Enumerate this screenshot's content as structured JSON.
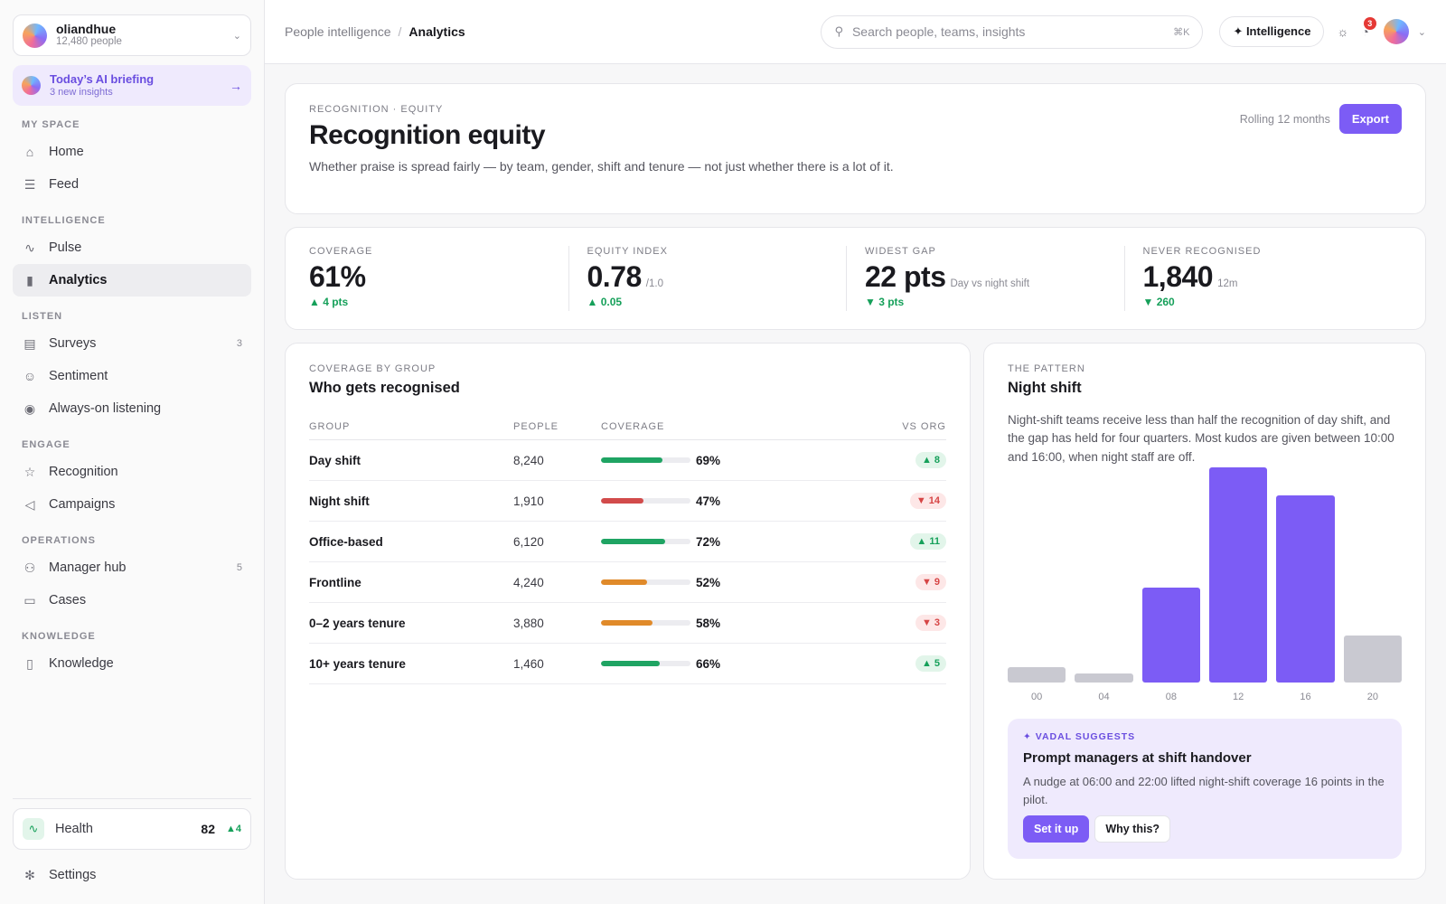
{
  "org": {
    "name": "oliandhue",
    "people": "12,480 people"
  },
  "briefing": {
    "title": "Today’s AI briefing",
    "sub": "3 new insights"
  },
  "sidebar": {
    "sections": [
      {
        "label": "MY SPACE",
        "items": [
          {
            "label": "Home",
            "icon": "home-icon",
            "glyph": "⌂"
          },
          {
            "label": "Feed",
            "icon": "feed-icon",
            "glyph": "☰"
          }
        ]
      },
      {
        "label": "INTELLIGENCE",
        "items": [
          {
            "label": "Pulse",
            "icon": "pulse-icon",
            "glyph": "∿"
          },
          {
            "label": "Analytics",
            "icon": "analytics-icon",
            "glyph": "▮",
            "active": true
          }
        ]
      },
      {
        "label": "LISTEN",
        "items": [
          {
            "label": "Surveys",
            "icon": "surveys-icon",
            "glyph": "▤",
            "count": "3"
          },
          {
            "label": "Sentiment",
            "icon": "sentiment-icon",
            "glyph": "☺"
          },
          {
            "label": "Always-on listening",
            "icon": "listening-icon",
            "glyph": "◉"
          }
        ]
      },
      {
        "label": "ENGAGE",
        "items": [
          {
            "label": "Recognition",
            "icon": "star-icon",
            "glyph": "☆"
          },
          {
            "label": "Campaigns",
            "icon": "megaphone-icon",
            "glyph": "◁"
          }
        ]
      },
      {
        "label": "OPERATIONS",
        "items": [
          {
            "label": "Manager hub",
            "icon": "users-icon",
            "glyph": "⚇",
            "count": "5"
          },
          {
            "label": "Cases",
            "icon": "briefcase-icon",
            "glyph": "▭"
          }
        ]
      },
      {
        "label": "KNOWLEDGE",
        "items": [
          {
            "label": "Knowledge",
            "icon": "book-icon",
            "glyph": "▯"
          }
        ]
      }
    ],
    "health": {
      "label": "Health",
      "value": "82",
      "delta": "▲4"
    },
    "settings": "Settings"
  },
  "topbar": {
    "crumb_parent": "People intelligence",
    "crumb_sep": "/",
    "crumb_current": "Analytics",
    "search_placeholder": "Search people, teams, insights",
    "search_kbd": "⌘K",
    "intel_label": "✦ Intelligence",
    "notif_count": "3"
  },
  "header": {
    "eyebrow": "RECOGNITION · EQUITY",
    "title": "Recognition equity",
    "desc": "Whether praise is spread fairly — by team, gender, shift and tenure — not just whether there is a lot of it.",
    "rolling": "Rolling 12 months",
    "export": "Export"
  },
  "kpis": [
    {
      "label": "COVERAGE",
      "value": "61%",
      "suffix": "",
      "delta": "▲ 4 pts"
    },
    {
      "label": "EQUITY INDEX",
      "value": "0.78",
      "suffix": "/1.0",
      "delta": "▲ 0.05"
    },
    {
      "label": "WIDEST GAP",
      "value": "22 pts",
      "suffix": "Day vs night shift",
      "delta": "▼ 3 pts"
    },
    {
      "label": "NEVER RECOGNISED",
      "value": "1,840",
      "suffix": "12m",
      "delta": "▼ 260"
    }
  ],
  "coverage": {
    "eyebrow": "COVERAGE BY GROUP",
    "title": "Who gets recognised",
    "headers": {
      "group": "GROUP",
      "people": "PEOPLE",
      "coverage": "COVERAGE",
      "vs": "VS ORG"
    },
    "rows": [
      {
        "group": "Day shift",
        "people": "8,240",
        "coverage": "69%",
        "pct": 69,
        "color": "#1fa463",
        "vs": "▲ 8",
        "dir": "up"
      },
      {
        "group": "Night shift",
        "people": "1,910",
        "coverage": "47%",
        "pct": 47,
        "color": "#d24b4b",
        "vs": "▼ 14",
        "dir": "down"
      },
      {
        "group": "Office-based",
        "people": "6,120",
        "coverage": "72%",
        "pct": 72,
        "color": "#1fa463",
        "vs": "▲ 11",
        "dir": "up"
      },
      {
        "group": "Frontline",
        "people": "4,240",
        "coverage": "52%",
        "pct": 52,
        "color": "#e08a2a",
        "vs": "▼ 9",
        "dir": "down"
      },
      {
        "group": "0–2 years tenure",
        "people": "3,880",
        "coverage": "58%",
        "pct": 58,
        "color": "#e08a2a",
        "vs": "▼ 3",
        "dir": "down"
      },
      {
        "group": "10+ years tenure",
        "people": "1,460",
        "coverage": "66%",
        "pct": 66,
        "color": "#1fa463",
        "vs": "▲ 5",
        "dir": "up"
      }
    ]
  },
  "pattern": {
    "eyebrow": "THE PATTERN",
    "title": "Night shift",
    "desc": "Night-shift teams receive less than half the recognition of day shift, and the gap has held for four quarters. Most kudos are given between 10:00 and 16:00, when night staff are off."
  },
  "chart_data": {
    "type": "bar",
    "categories": [
      "00",
      "04",
      "08",
      "12",
      "16",
      "20"
    ],
    "values": [
      7,
      4,
      44,
      100,
      87,
      22
    ],
    "ylim": [
      0,
      100
    ],
    "highlight": [
      false,
      false,
      true,
      true,
      true,
      false
    ],
    "colors": {
      "highlight": "#7c5cf5",
      "muted": "#c9c9d1"
    }
  },
  "suggest": {
    "eyebrow": "✦ VADAL SUGGESTS",
    "title": "Prompt managers at shift handover",
    "body": "A nudge at 06:00 and 22:00 lifted night-shift coverage 16 points in the pilot.",
    "primary": "Set it up",
    "secondary": "Why this?"
  }
}
